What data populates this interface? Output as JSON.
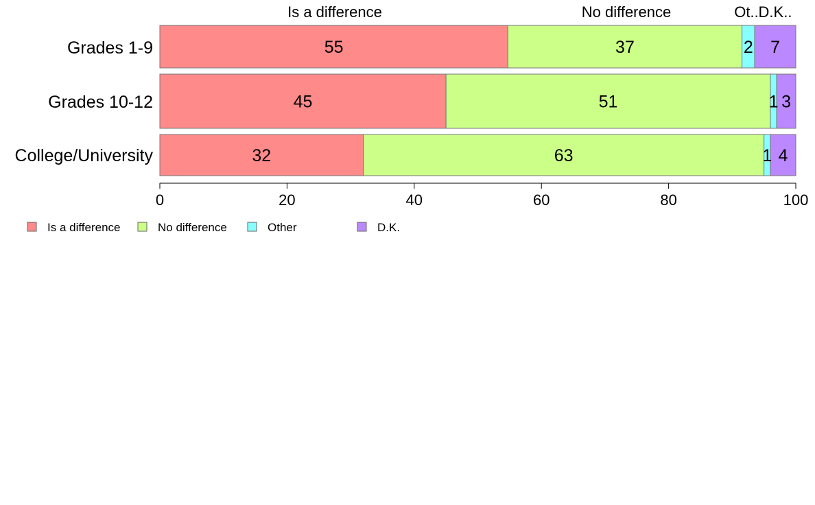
{
  "chart_data": {
    "type": "bar",
    "orientation": "horizontal",
    "stacked": true,
    "categories": [
      "Grades 1-9",
      "Grades 10-12",
      "College/University"
    ],
    "series": [
      {
        "name": "Is a difference",
        "values": [
          55,
          45,
          32
        ],
        "labels": [
          "55",
          "45",
          "32"
        ]
      },
      {
        "name": "No difference",
        "values": [
          37,
          51,
          63
        ],
        "labels": [
          "37",
          "51",
          "63"
        ]
      },
      {
        "name": "Other",
        "values": [
          2,
          1,
          1
        ],
        "labels": [
          "2",
          "1",
          "1"
        ]
      },
      {
        "name": "D.K.",
        "values": [
          6.5,
          3,
          4
        ],
        "labels": [
          "7",
          "3",
          "4"
        ]
      }
    ],
    "top_labels": [
      "Is a difference",
      "No difference",
      "Ot..",
      "D.K.."
    ],
    "xlim": [
      0,
      100
    ],
    "xticks": [
      "0",
      "20",
      "40",
      "60",
      "80",
      "100"
    ],
    "legend_position": "bottom-left",
    "grid": false
  },
  "colors": {
    "Is a difference": "#ff8a8a",
    "No difference": "#ccff88",
    "Other": "#88ffff",
    "D.K.": "#bb88ff"
  }
}
